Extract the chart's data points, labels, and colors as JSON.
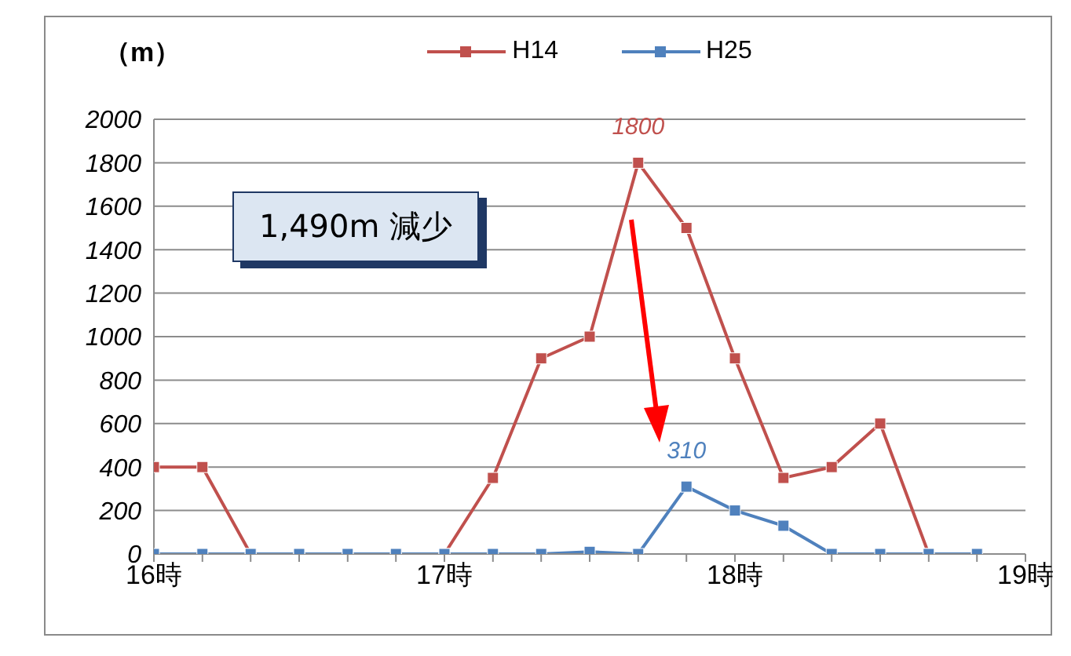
{
  "chart_data": {
    "type": "line",
    "ylabel": "（m）",
    "x": [
      16,
      16.167,
      16.333,
      16.5,
      16.667,
      16.833,
      17,
      17.167,
      17.333,
      17.5,
      17.667,
      17.833,
      18,
      18.167,
      18.333,
      18.5,
      18.667,
      18.833
    ],
    "series": [
      {
        "name": "H14",
        "color": "#c0504d",
        "values": [
          400,
          400,
          0,
          0,
          0,
          0,
          0,
          350,
          900,
          1000,
          1800,
          1500,
          900,
          350,
          400,
          600,
          0,
          0
        ],
        "value_labels": [
          null,
          null,
          null,
          null,
          null,
          null,
          null,
          null,
          null,
          null,
          "1800",
          null,
          null,
          null,
          null,
          null,
          null,
          null
        ]
      },
      {
        "name": "H25",
        "color": "#4f81bd",
        "values": [
          0,
          0,
          0,
          0,
          0,
          0,
          0,
          0,
          0,
          10,
          0,
          310,
          200,
          130,
          0,
          0,
          0,
          0
        ],
        "value_labels": [
          null,
          null,
          null,
          null,
          null,
          null,
          null,
          null,
          null,
          null,
          null,
          "310",
          null,
          null,
          null,
          null,
          null,
          null
        ]
      }
    ],
    "xlim": [
      16,
      19
    ],
    "xticks": [
      {
        "value": 16,
        "label": "16時"
      },
      {
        "value": 16.167,
        "label": null
      },
      {
        "value": 16.333,
        "label": null
      },
      {
        "value": 16.5,
        "label": null
      },
      {
        "value": 16.667,
        "label": null
      },
      {
        "value": 16.833,
        "label": null
      },
      {
        "value": 17,
        "label": "17時"
      },
      {
        "value": 17.167,
        "label": null
      },
      {
        "value": 17.333,
        "label": null
      },
      {
        "value": 17.5,
        "label": null
      },
      {
        "value": 17.667,
        "label": null
      },
      {
        "value": 17.833,
        "label": null
      },
      {
        "value": 18,
        "label": "18時"
      },
      {
        "value": 18.167,
        "label": null
      },
      {
        "value": 18.333,
        "label": null
      },
      {
        "value": 18.5,
        "label": null
      },
      {
        "value": 18.667,
        "label": null
      },
      {
        "value": 18.833,
        "label": null
      },
      {
        "value": 19,
        "label": "19時"
      }
    ],
    "ylim": [
      0,
      2000
    ],
    "yticks": [
      0,
      200,
      400,
      600,
      800,
      1000,
      1200,
      1400,
      1600,
      1800,
      2000
    ],
    "grid": "y",
    "legend": "top",
    "marker": "square",
    "line_style": "solid",
    "annotations": [
      "1,490m 減少"
    ]
  }
}
